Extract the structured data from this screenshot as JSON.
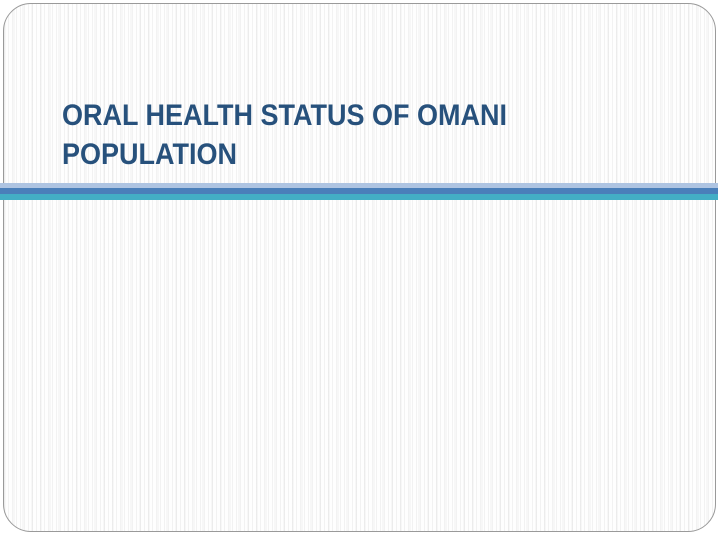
{
  "slide": {
    "title": {
      "full_text": "ORAL HEALTH STATUS OF OMANI POPULATION",
      "lines": [
        "ORAL HEALTH STATUS OF OMANI",
        "POPULATION"
      ]
    },
    "colors": {
      "title_text": "#27517C",
      "divider_top": "#AEC4E2",
      "divider_middle": "#4A7FBA",
      "divider_bottom": "#43AEC5",
      "slide_border": "#9A9A9A"
    }
  }
}
